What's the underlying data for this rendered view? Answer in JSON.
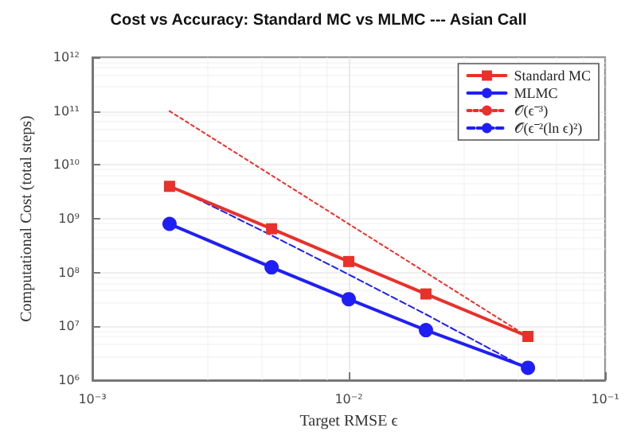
{
  "chart_data": {
    "type": "line",
    "title": "Cost vs Accuracy: Standard MC vs MLMC --- Asian Call",
    "xlabel": "Target RMSE ϵ",
    "ylabel": "Computational Cost (total steps)",
    "x": [
      0.002,
      0.005,
      0.01,
      0.02,
      0.05
    ],
    "series": [
      {
        "name": "Standard MC",
        "color": "#e8312a",
        "marker": "square",
        "line_style": "solid",
        "values": [
          4000000000,
          650000000,
          160000000,
          40000000,
          6500000
        ]
      },
      {
        "name": "MLMC",
        "color": "#1f1ff5",
        "marker": "circle",
        "line_style": "solid",
        "values": [
          800000000,
          125000000,
          32000000,
          8500000,
          1700000
        ]
      },
      {
        "name": "𝒪(ϵ⁻³)",
        "color": "#e8312a",
        "marker": "none",
        "line_style": "dotted",
        "values": [
          100000000000,
          6400000000,
          800000000,
          100000000,
          6400000
        ]
      },
      {
        "name": "𝒪(ϵ⁻²(ln ϵ)²)",
        "color": "#1f1ff5",
        "marker": "none",
        "line_style": "dashed",
        "values": [
          4200000000,
          490000000,
          92000000,
          16700000,
          1600000
        ]
      }
    ],
    "log": "xy",
    "xlim": [
      0.001,
      0.1
    ],
    "ylim": [
      1000000,
      1000000000000
    ],
    "xticks": [
      {
        "value": 0.001,
        "label": "10⁻³"
      },
      {
        "value": 0.01,
        "label": "10⁻²"
      },
      {
        "value": 0.1,
        "label": "10⁻¹"
      }
    ],
    "yticks": [
      {
        "value": 1000000,
        "label": "10⁶"
      },
      {
        "value": 10000000,
        "label": "10⁷"
      },
      {
        "value": 100000000,
        "label": "10⁸"
      },
      {
        "value": 1000000000,
        "label": "10⁹"
      },
      {
        "value": 10000000000,
        "label": "10¹⁰"
      },
      {
        "value": 100000000000,
        "label": "10¹¹"
      },
      {
        "value": 1000000000000,
        "label": "10¹²"
      }
    ],
    "grid": true,
    "legend": "top right"
  }
}
